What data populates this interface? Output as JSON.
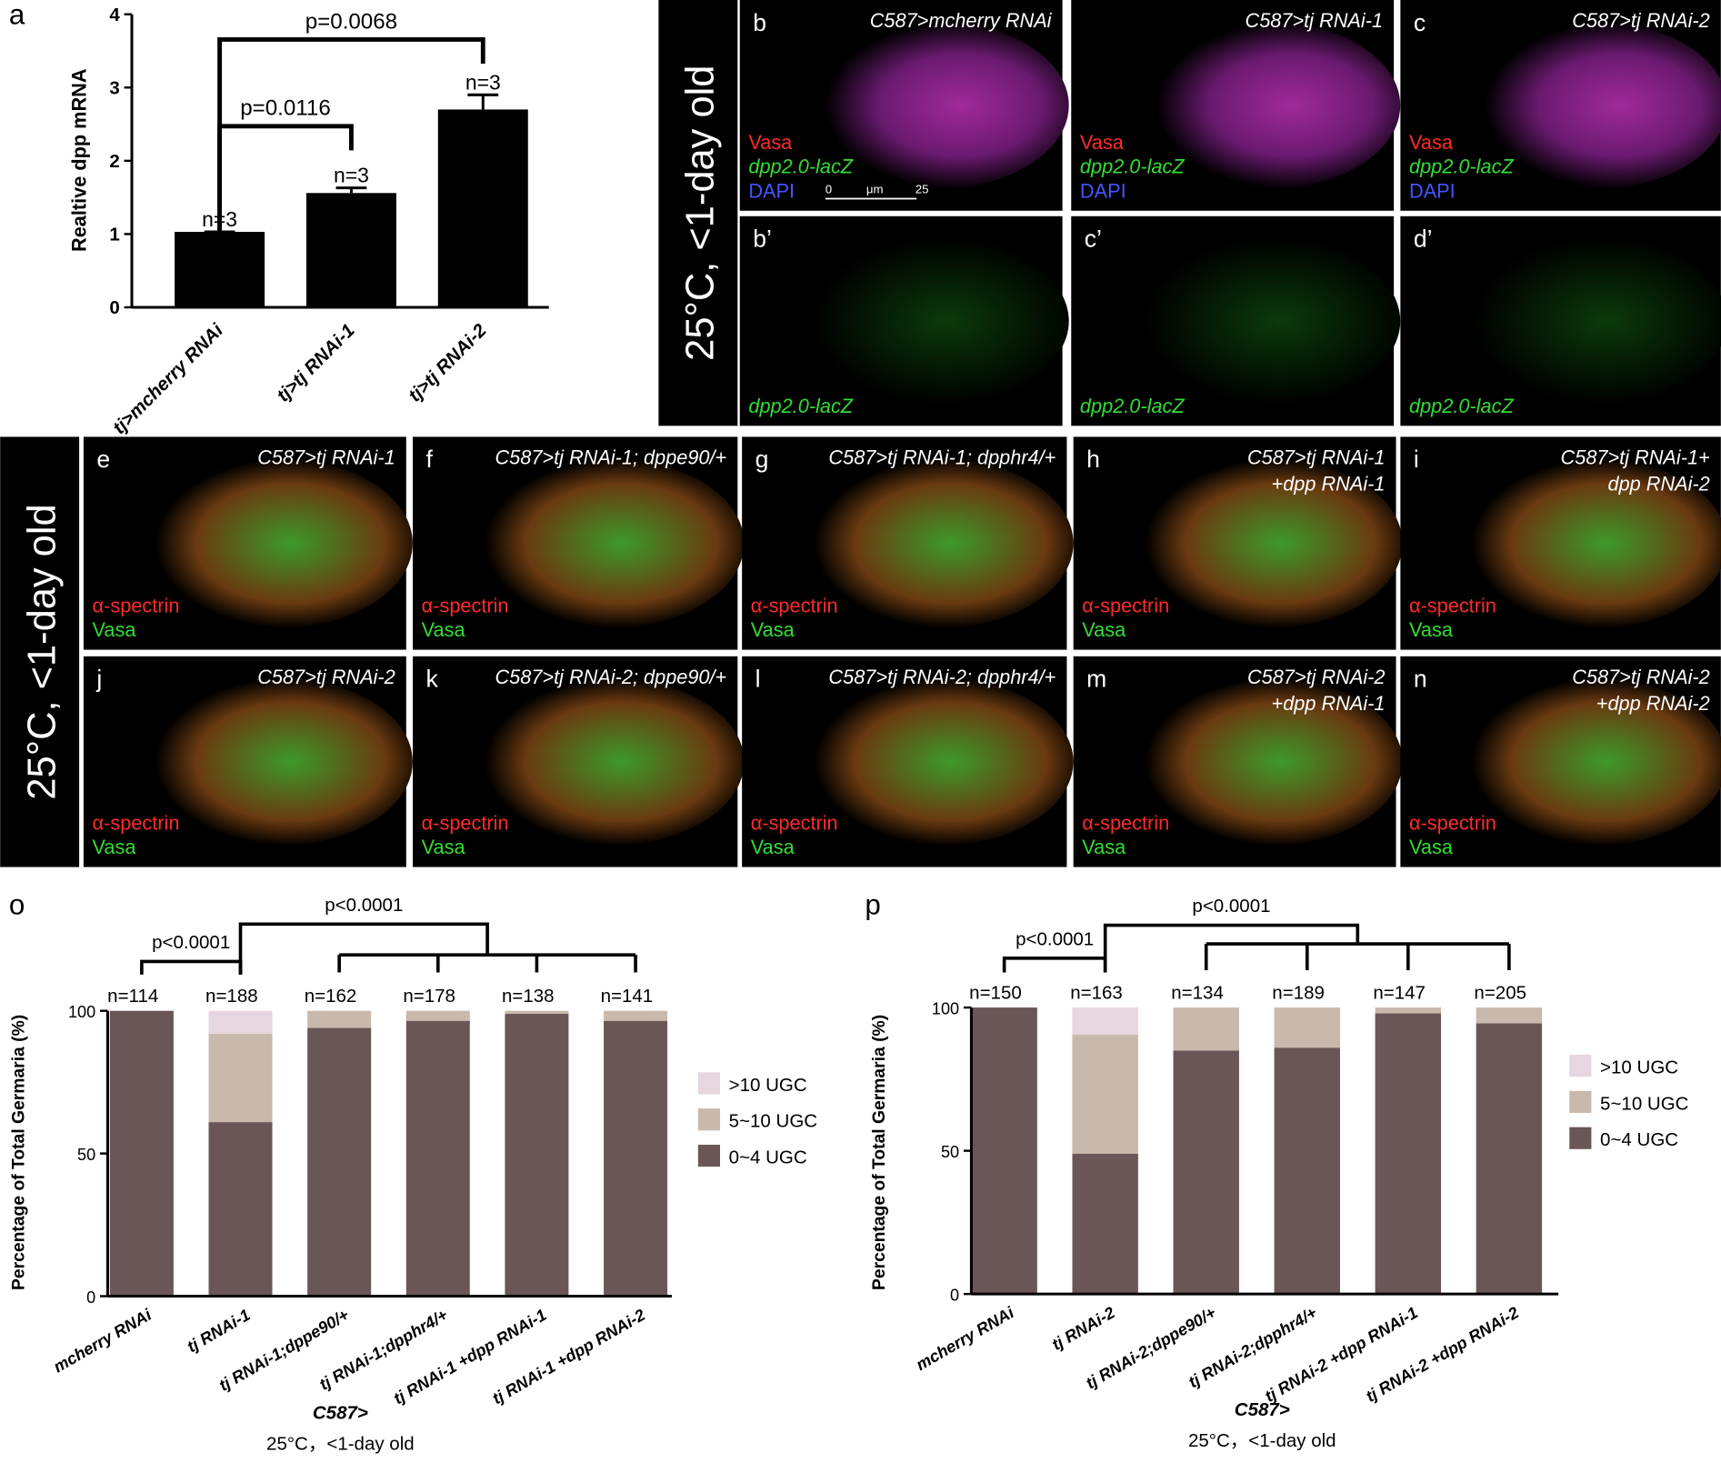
{
  "chart_data": [
    {
      "type": "bar",
      "panel": "a",
      "ylabel": "Realtive dpp mRNA",
      "categories": [
        "tj>mcherry RNAi",
        "tj>tj RNAi-1",
        "tj>tj RNAi-2"
      ],
      "values": [
        1.03,
        1.56,
        2.7
      ],
      "errors": [
        0,
        0.07,
        0.2
      ],
      "n_labels": [
        "n=3",
        "n=3",
        "n=3"
      ],
      "color": "#000000",
      "ylim": [
        0,
        4
      ],
      "yticks": [
        0,
        1,
        2,
        3,
        4
      ],
      "brackets": [
        {
          "from": [
            0
          ],
          "to": [
            1
          ],
          "label": "p=0.0116"
        },
        {
          "from": [
            0
          ],
          "to": [
            2
          ],
          "label": "p=0.0068"
        }
      ]
    },
    {
      "type": "stacked_bar",
      "panel": "o",
      "ylabel": "Percentage of Total Germaria (%)",
      "xlabel": [
        "C587>",
        "25°C，<1-day old"
      ],
      "categories": [
        "mcherry RNAi",
        "tj RNAi-1",
        "tj RNAi-1;dppe90/+",
        "tj RNAi-1;dpphr4/+",
        "tj RNAi-1 +dpp RNAi-1",
        "tj RNAi-1 +dpp RNAi-2"
      ],
      "series": [
        {
          "name": "0~4 UGC",
          "color": "#6b5657",
          "values": [
            100,
            61,
            94,
            96.5,
            99,
            96.5
          ]
        },
        {
          "name": "5~10 UGC",
          "color": "#c9b8ac",
          "values": [
            0,
            31,
            6,
            3.5,
            1,
            3.5
          ]
        },
        {
          "name": ">10 UGC",
          "color": "#e7d5df",
          "values": [
            0,
            8,
            0,
            0,
            0,
            0
          ]
        }
      ],
      "n_labels": [
        "n=114",
        "n=188",
        "n=162",
        "n=178",
        "n=138",
        "n=141"
      ],
      "ylim": [
        0,
        100
      ],
      "yticks": [
        0,
        50,
        100
      ],
      "brackets": [
        {
          "from": [
            0
          ],
          "to": [
            1
          ],
          "label": "p<0.0001"
        },
        {
          "from": [
            1
          ],
          "to": [
            2,
            3,
            4,
            5
          ],
          "label": "p<0.0001"
        }
      ]
    },
    {
      "type": "stacked_bar",
      "panel": "p",
      "ylabel": "Percentage of Total Germaria (%)",
      "xlabel": [
        "C587>",
        "25°C，<1-day old"
      ],
      "categories": [
        "mcherry RNAi",
        "tj RNAi-2",
        "tj RNAi-2;dppe90/+",
        "tj RNAi-2;dpphr4/+",
        "tj RNAi-2 +dpp RNAi-1",
        "tj RNAi-2 +dpp RNAi-2"
      ],
      "series": [
        {
          "name": "0~4 UGC",
          "color": "#6b5657",
          "values": [
            100,
            49,
            85,
            86,
            98,
            94.5
          ]
        },
        {
          "name": "5~10 UGC",
          "color": "#c9b8ac",
          "values": [
            0,
            41.5,
            15,
            14,
            2,
            5.5
          ]
        },
        {
          "name": ">10 UGC",
          "color": "#e7d5df",
          "values": [
            0,
            9.5,
            0,
            0,
            0,
            0
          ]
        }
      ],
      "n_labels": [
        "n=150",
        "n=163",
        "n=134",
        "n=189",
        "n=147",
        "n=205"
      ],
      "ylim": [
        0,
        100
      ],
      "yticks": [
        0,
        50,
        100
      ],
      "brackets": [
        {
          "from": [
            0
          ],
          "to": [
            1
          ],
          "label": "p<0.0001"
        },
        {
          "from": [
            1
          ],
          "to": [
            2,
            3,
            4,
            5
          ],
          "label": "p<0.0001"
        }
      ]
    }
  ],
  "images": {
    "side_labels": [
      "25°C, <1-day old",
      "25°C, <1-day old"
    ],
    "scale_bar": [
      "0",
      "μm",
      "25"
    ],
    "panels": [
      {
        "letter": "b",
        "title": [
          "C587>mcherry RNAi"
        ],
        "labels": [
          {
            "text": "Vasa",
            "color": "#ff2a2a"
          },
          {
            "text": "dpp2.0-lacZ",
            "color": "#33dd33"
          },
          {
            "text": "DAPI",
            "color": "#4455ff"
          }
        ]
      },
      {
        "title": [
          "C587>tj RNAi-1"
        ],
        "labels": [
          {
            "text": "Vasa",
            "color": "#ff2a2a"
          },
          {
            "text": "dpp2.0-lacZ",
            "color": "#33dd33"
          },
          {
            "text": "DAPI",
            "color": "#4455ff"
          }
        ]
      },
      {
        "letter": "c",
        "title": [
          "C587>tj RNAi-2"
        ],
        "labels": [
          {
            "text": "Vasa",
            "color": "#ff2a2a"
          },
          {
            "text": "dpp2.0-lacZ",
            "color": "#33dd33"
          },
          {
            "text": "DAPI",
            "color": "#4455ff"
          }
        ]
      },
      {
        "letter": "b’",
        "labels": [
          {
            "text": "dpp2.0-lacZ",
            "color": "#33dd33"
          }
        ]
      },
      {
        "letter": "c’",
        "labels": [
          {
            "text": "dpp2.0-lacZ",
            "color": "#33dd33"
          }
        ]
      },
      {
        "letter": "d’",
        "labels": [
          {
            "text": "dpp2.0-lacZ",
            "color": "#33dd33"
          }
        ]
      },
      {
        "letter": "e",
        "title": [
          "C587>tj RNAi-1"
        ],
        "labels": [
          {
            "text": "α-spectrin",
            "color": "#ff2a2a"
          },
          {
            "text": "Vasa",
            "color": "#33dd33"
          }
        ]
      },
      {
        "letter": "f",
        "title": [
          "C587>tj RNAi-1; dppe90/+"
        ],
        "labels": [
          {
            "text": "α-spectrin",
            "color": "#ff2a2a"
          },
          {
            "text": "Vasa",
            "color": "#33dd33"
          }
        ]
      },
      {
        "letter": "g",
        "title": [
          "C587>tj RNAi-1; dpphr4/+"
        ],
        "labels": [
          {
            "text": "α-spectrin",
            "color": "#ff2a2a"
          },
          {
            "text": "Vasa",
            "color": "#33dd33"
          }
        ]
      },
      {
        "letter": "h",
        "title": [
          "C587>tj RNAi-1",
          "+dpp RNAi-1"
        ],
        "labels": [
          {
            "text": "α-spectrin",
            "color": "#ff2a2a"
          },
          {
            "text": "Vasa",
            "color": "#33dd33"
          }
        ]
      },
      {
        "letter": "i",
        "title": [
          "C587>tj RNAi-1+",
          "dpp RNAi-2"
        ],
        "labels": [
          {
            "text": "α-spectrin",
            "color": "#ff2a2a"
          },
          {
            "text": "Vasa",
            "color": "#33dd33"
          }
        ]
      },
      {
        "letter": "j",
        "title": [
          "C587>tj RNAi-2"
        ],
        "labels": [
          {
            "text": "α-spectrin",
            "color": "#ff2a2a"
          },
          {
            "text": "Vasa",
            "color": "#33dd33"
          }
        ]
      },
      {
        "letter": "k",
        "title": [
          "C587>tj RNAi-2; dppe90/+"
        ],
        "labels": [
          {
            "text": "α-spectrin",
            "color": "#ff2a2a"
          },
          {
            "text": "Vasa",
            "color": "#33dd33"
          }
        ]
      },
      {
        "letter": "l",
        "title": [
          "C587>tj RNAi-2; dpphr4/+"
        ],
        "labels": [
          {
            "text": "α-spectrin",
            "color": "#ff2a2a"
          },
          {
            "text": "Vasa",
            "color": "#33dd33"
          }
        ]
      },
      {
        "letter": "m",
        "title": [
          "C587>tj RNAi-2",
          "+dpp RNAi-1"
        ],
        "labels": [
          {
            "text": "α-spectrin",
            "color": "#ff2a2a"
          },
          {
            "text": "Vasa",
            "color": "#33dd33"
          }
        ]
      },
      {
        "letter": "n",
        "title": [
          "C587>tj RNAi-2",
          "+dpp RNAi-2"
        ],
        "labels": [
          {
            "text": "α-spectrin",
            "color": "#ff2a2a"
          },
          {
            "text": "Vasa",
            "color": "#33dd33"
          }
        ]
      }
    ]
  }
}
